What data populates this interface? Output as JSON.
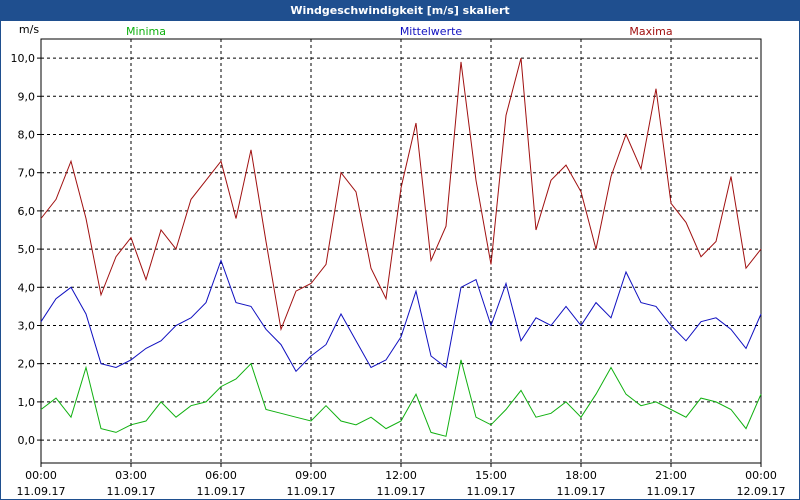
{
  "window": {
    "title": "Windgeschwindigkeit [m/s] skaliert"
  },
  "chart_data": {
    "type": "line",
    "title": "Windgeschwindigkeit [m/s] skaliert",
    "ylabel": "m/s",
    "xlabel": "",
    "ylim": [
      -0.6,
      10.5
    ],
    "yticks": [
      0,
      1,
      2,
      3,
      4,
      5,
      6,
      7,
      8,
      9,
      10
    ],
    "ytick_labels": [
      "0,0",
      "1,0",
      "2,0",
      "3,0",
      "4,0",
      "5,0",
      "6,0",
      "7,0",
      "8,0",
      "9,0",
      "10,0"
    ],
    "xlim": [
      0,
      24
    ],
    "xticks": [
      {
        "hour": 0,
        "time": "00:00",
        "date": "11.09.17"
      },
      {
        "hour": 3,
        "time": "03:00",
        "date": "11.09.17"
      },
      {
        "hour": 6,
        "time": "06:00",
        "date": "11.09.17"
      },
      {
        "hour": 9,
        "time": "09:00",
        "date": "11.09.17"
      },
      {
        "hour": 12,
        "time": "12:00",
        "date": "11.09.17"
      },
      {
        "hour": 15,
        "time": "15:00",
        "date": "11.09.17"
      },
      {
        "hour": 18,
        "time": "18:00",
        "date": "11.09.17"
      },
      {
        "hour": 21,
        "time": "21:00",
        "date": "11.09.17"
      },
      {
        "hour": 24,
        "time": "00:00",
        "date": "12.09.17"
      }
    ],
    "grid": true,
    "legend_position": "top",
    "series": [
      {
        "name": "Minima",
        "color": "#10b010",
        "x": [
          0,
          0.5,
          1,
          1.5,
          2,
          2.5,
          3,
          3.5,
          4,
          4.5,
          5,
          5.5,
          6,
          6.5,
          7,
          7.5,
          8,
          8.5,
          9,
          9.5,
          10,
          10.5,
          11,
          11.5,
          12,
          12.5,
          13,
          13.5,
          14,
          14.5,
          15,
          15.5,
          16,
          16.5,
          17,
          17.5,
          18,
          18.5,
          19,
          19.5,
          20,
          20.5,
          21,
          21.5,
          22,
          22.5,
          23,
          23.5,
          24
        ],
        "values": [
          0.8,
          1.1,
          0.6,
          1.9,
          0.3,
          0.2,
          0.4,
          0.5,
          1.0,
          0.6,
          0.9,
          1.0,
          1.4,
          1.6,
          2.0,
          0.8,
          0.7,
          0.6,
          0.5,
          0.9,
          0.5,
          0.4,
          0.6,
          0.3,
          0.5,
          1.2,
          0.2,
          0.1,
          2.1,
          0.6,
          0.4,
          0.8,
          1.3,
          0.6,
          0.7,
          1.0,
          0.6,
          1.2,
          1.9,
          1.2,
          0.9,
          1.0,
          0.8,
          0.6,
          1.1,
          1.0,
          0.8,
          0.3,
          1.2
        ]
      },
      {
        "name": "Mittelwerte",
        "color": "#1010c0",
        "x": [
          0,
          0.5,
          1,
          1.5,
          2,
          2.5,
          3,
          3.5,
          4,
          4.5,
          5,
          5.5,
          6,
          6.5,
          7,
          7.5,
          8,
          8.5,
          9,
          9.5,
          10,
          10.5,
          11,
          11.5,
          12,
          12.5,
          13,
          13.5,
          14,
          14.5,
          15,
          15.5,
          16,
          16.5,
          17,
          17.5,
          18,
          18.5,
          19,
          19.5,
          20,
          20.5,
          21,
          21.5,
          22,
          22.5,
          23,
          23.5,
          24
        ],
        "values": [
          3.1,
          3.7,
          4.0,
          3.3,
          2.0,
          1.9,
          2.1,
          2.4,
          2.6,
          3.0,
          3.2,
          3.6,
          4.7,
          3.6,
          3.5,
          2.9,
          2.5,
          1.8,
          2.2,
          2.5,
          3.3,
          2.6,
          1.9,
          2.1,
          2.7,
          3.9,
          2.2,
          1.9,
          4.0,
          4.2,
          3.0,
          4.1,
          2.6,
          3.2,
          3.0,
          3.5,
          3.0,
          3.6,
          3.2,
          4.4,
          3.6,
          3.5,
          3.0,
          2.6,
          3.1,
          3.2,
          2.9,
          2.4,
          3.3
        ]
      },
      {
        "name": "Maxima",
        "color": "#a01010",
        "x": [
          0,
          0.5,
          1,
          1.5,
          2,
          2.5,
          3,
          3.5,
          4,
          4.5,
          5,
          5.5,
          6,
          6.5,
          7,
          7.5,
          8,
          8.5,
          9,
          9.5,
          10,
          10.5,
          11,
          11.5,
          12,
          12.5,
          13,
          13.5,
          14,
          14.5,
          15,
          15.5,
          16,
          16.5,
          17,
          17.5,
          18,
          18.5,
          19,
          19.5,
          20,
          20.5,
          21,
          21.5,
          22,
          22.5,
          23,
          23.5,
          24
        ],
        "values": [
          5.8,
          6.3,
          7.3,
          5.8,
          3.8,
          4.8,
          5.3,
          4.2,
          5.5,
          5.0,
          6.3,
          6.8,
          7.3,
          5.8,
          7.6,
          5.2,
          2.9,
          3.9,
          4.1,
          4.6,
          7.0,
          6.5,
          4.5,
          3.7,
          6.6,
          8.3,
          4.7,
          5.6,
          9.9,
          6.8,
          4.6,
          8.5,
          10.0,
          5.5,
          6.8,
          7.2,
          6.5,
          5.0,
          6.9,
          8.0,
          7.1,
          9.2,
          6.2,
          5.7,
          4.8,
          5.2,
          6.9,
          4.5,
          5.0
        ]
      }
    ]
  }
}
